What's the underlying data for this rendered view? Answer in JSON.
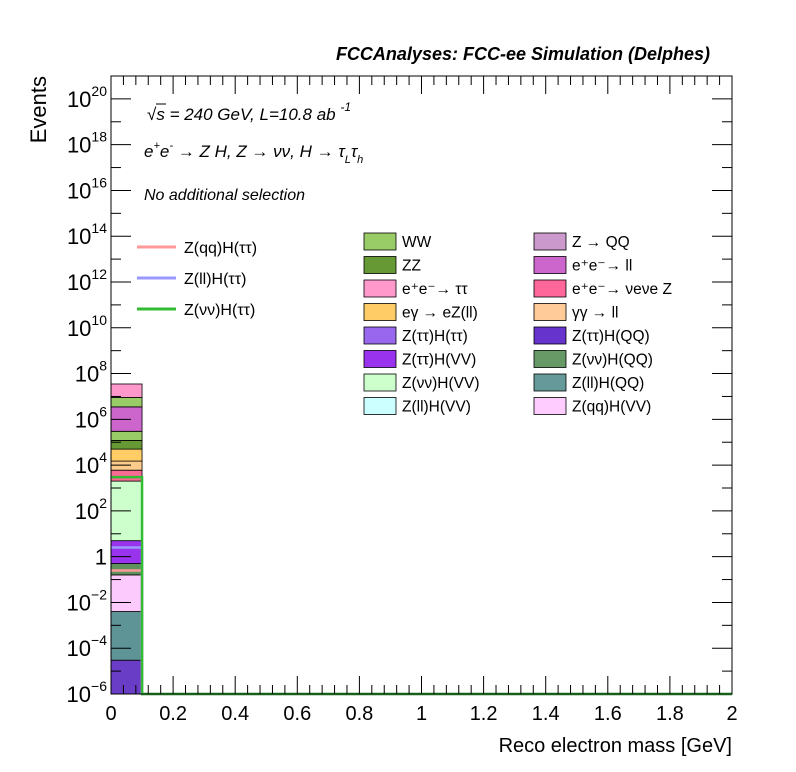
{
  "chart_data": {
    "type": "bar",
    "header": "FCCAnalyses: FCC-ee Simulation (Delphes)",
    "info_lines": [
      "√s = 240 GeV, L=10.8 ab⁻¹",
      "e⁺e⁻ → Z H, Z → νν, H → τLτh",
      "No additional selection"
    ],
    "xlabel": "Reco electron mass [GeV]",
    "ylabel": "Events",
    "xlim": [
      0,
      2
    ],
    "ylim": [
      1e-06,
      1e+21
    ],
    "log_y": true,
    "x_ticks": [
      "0",
      "0.2",
      "0.4",
      "0.6",
      "0.8",
      "1",
      "1.2",
      "1.4",
      "1.6",
      "1.8",
      "2"
    ],
    "x_tick_values": [
      0,
      0.2,
      0.4,
      0.6,
      0.8,
      1,
      1.2,
      1.4,
      1.6,
      1.8,
      2
    ],
    "y_ticks": [
      {
        "exp": -6,
        "label": "10",
        "sup": "−6"
      },
      {
        "exp": -4,
        "label": "10",
        "sup": "−4"
      },
      {
        "exp": -2,
        "label": "10",
        "sup": "−2"
      },
      {
        "exp": 0,
        "label": "1",
        "sup": ""
      },
      {
        "exp": 2,
        "label": "10",
        "sup": "2"
      },
      {
        "exp": 4,
        "label": "10",
        "sup": "4"
      },
      {
        "exp": 6,
        "label": "10",
        "sup": "6"
      },
      {
        "exp": 8,
        "label": "10",
        "sup": "8"
      },
      {
        "exp": 10,
        "label": "10",
        "sup": "10"
      },
      {
        "exp": 12,
        "label": "10",
        "sup": "12"
      },
      {
        "exp": 14,
        "label": "10",
        "sup": "14"
      },
      {
        "exp": 16,
        "label": "10",
        "sup": "16"
      },
      {
        "exp": 18,
        "label": "10",
        "sup": "18"
      },
      {
        "exp": 20,
        "label": "10",
        "sup": "20"
      }
    ],
    "bin_edges": [
      0,
      0.1
    ],
    "stack_segments": [
      {
        "name": "Z(νν)H(QQ)",
        "color": "#6a3dc7",
        "from": 1e-06,
        "to": 3e-05
      },
      {
        "name": "Z(ll)H(QQ)",
        "color": "#5f9497",
        "from": 3e-05,
        "to": 0.004
      },
      {
        "name": "Z(qq)H(VV)",
        "color": "#fdcafd",
        "from": 0.004,
        "to": 0.16
      },
      {
        "name": "Z(νν)H(QQ)",
        "color": "#5f915f",
        "from": 0.16,
        "to": 0.5
      },
      {
        "name": "Z(ττ)H(VV)",
        "color": "#9933ee",
        "from": 0.5,
        "to": 5
      },
      {
        "name": "Z(νν)H(VV)",
        "color": "#ccffcc",
        "from": 5,
        "to": 2000.0
      },
      {
        "name": "e⁺e⁻ → νeνe Z",
        "color": "#f76b93",
        "from": 2000.0,
        "to": 6000.0
      },
      {
        "name": "γγ → ll",
        "color": "#fccb8c",
        "from": 6000.0,
        "to": 15000.0
      },
      {
        "name": "eγ → eZ(ll)",
        "color": "#ffcc66",
        "from": 15000.0,
        "to": 50000.0
      },
      {
        "name": "ZZ",
        "color": "#669933",
        "from": 50000.0,
        "to": 120000.0
      },
      {
        "name": "WW",
        "color": "#99cc66",
        "from": 120000.0,
        "to": 300000.0
      },
      {
        "name": "e⁺e⁻ → ll",
        "color": "#cc66cc",
        "from": 300000.0,
        "to": 3500000.0
      },
      {
        "name": "WW",
        "color": "#99cc66",
        "from": 3500000.0,
        "to": 9000000.0
      },
      {
        "name": "e⁺e⁻ → ττ",
        "color": "#ff99cc",
        "from": 9000000.0,
        "to": 35000000.0
      }
    ],
    "signal_lines": [
      {
        "name": "Z(qq)H(ττ)",
        "color": "#ff9999",
        "value": 0.25
      },
      {
        "name": "Z(ll)H(ττ)",
        "color": "#9999ff",
        "value": 2.5
      },
      {
        "name": "Z(νν)H(ττ)",
        "color": "#33bb33",
        "value": 3000
      }
    ],
    "legend_signals": [
      {
        "label": "Z(qq)H(ττ)",
        "color": "#ff9999"
      },
      {
        "label": "Z(ll)H(ττ)",
        "color": "#9999ff"
      },
      {
        "label": "Z(νν)H(ττ)",
        "color": "#33bb33"
      }
    ],
    "legend_backgrounds": [
      {
        "label": "WW",
        "color": "#99cc66"
      },
      {
        "label": "Z → QQ",
        "color": "#cc99cc"
      },
      {
        "label": "ZZ",
        "color": "#669933"
      },
      {
        "label": "e⁺e⁻→ ll",
        "color": "#cc66cc"
      },
      {
        "label": "e⁺e⁻→ ττ",
        "color": "#ff99cc"
      },
      {
        "label": "e⁺e⁻→ νeνe Z",
        "color": "#ff6699"
      },
      {
        "label": "eγ → eZ(ll)",
        "color": "#ffcc66"
      },
      {
        "label": "γγ → ll",
        "color": "#ffcc99"
      },
      {
        "label": "Z(ττ)H(ττ)",
        "color": "#9966ee"
      },
      {
        "label": "Z(ττ)H(QQ)",
        "color": "#6633cc"
      },
      {
        "label": "Z(ττ)H(VV)",
        "color": "#9933ee"
      },
      {
        "label": "Z(νν)H(QQ)",
        "color": "#669966"
      },
      {
        "label": "Z(νν)H(VV)",
        "color": "#ccffcc"
      },
      {
        "label": "Z(ll)H(QQ)",
        "color": "#669999"
      },
      {
        "label": "Z(ll)H(VV)",
        "color": "#ccffff"
      },
      {
        "label": "Z(qq)H(VV)",
        "color": "#ffccff"
      }
    ],
    "colors": {
      "axis": "#000000",
      "background": "#ffffff",
      "zero_line": "#33bb33"
    }
  }
}
